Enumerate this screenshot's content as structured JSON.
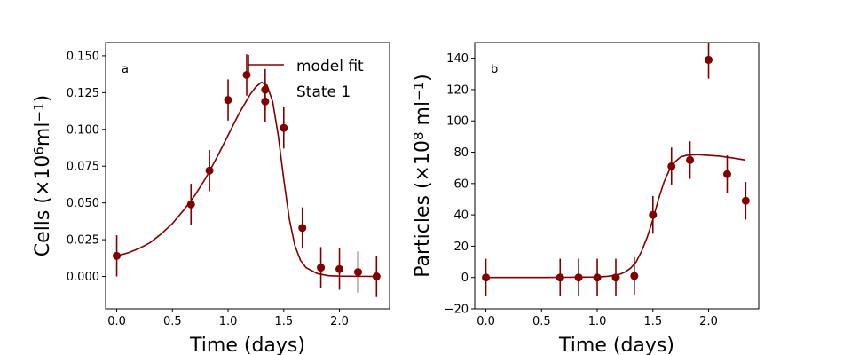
{
  "colors": {
    "data": "#800000",
    "axis": "#000000",
    "background": "#ffffff"
  },
  "chart_data": [
    {
      "type": "scatter",
      "panel_label": "a",
      "xlabel": "Time (days)",
      "ylabel_main": "Cells (×10",
      "ylabel_sup": "6",
      "ylabel_mid": "ml",
      "ylabel_sup2": "−1",
      "ylabel_end": ")",
      "xlim": [
        -0.1,
        2.45
      ],
      "ylim": [
        -0.022,
        0.159
      ],
      "xticks": [
        0.0,
        0.5,
        1.0,
        1.5,
        2.0
      ],
      "xtick_labels": [
        "0.0",
        "0.5",
        "1.0",
        "1.5",
        "2.0"
      ],
      "yticks": [
        0.0,
        0.025,
        0.05,
        0.075,
        0.1,
        0.125,
        0.15
      ],
      "ytick_labels": [
        "0.000",
        "0.025",
        "0.050",
        "0.075",
        "0.100",
        "0.125",
        "0.150"
      ],
      "legend": {
        "position": "top-right",
        "entries": [
          "model fit",
          "State 1"
        ]
      },
      "series": [
        {
          "name": "State 1",
          "kind": "errorbar",
          "x": [
            0.0,
            0.667,
            0.833,
            1.0,
            1.167,
            1.333,
            1.333,
            1.5,
            1.667,
            1.833,
            2.0,
            2.167,
            2.333
          ],
          "y": [
            0.014,
            0.049,
            0.072,
            0.12,
            0.137,
            0.127,
            0.119,
            0.101,
            0.033,
            0.006,
            0.005,
            0.003,
            0.0
          ],
          "yerr": [
            0.014,
            0.014,
            0.014,
            0.014,
            0.014,
            0.014,
            0.014,
            0.014,
            0.014,
            0.014,
            0.014,
            0.014,
            0.014
          ]
        },
        {
          "name": "model fit",
          "kind": "line",
          "x": [
            0.0,
            0.1,
            0.2,
            0.3,
            0.4,
            0.5,
            0.6,
            0.7,
            0.8,
            0.9,
            1.0,
            1.1,
            1.2,
            1.25,
            1.3,
            1.35,
            1.4,
            1.45,
            1.5,
            1.55,
            1.6,
            1.65,
            1.7,
            1.8,
            1.9,
            2.0,
            2.2,
            2.35
          ],
          "y": [
            0.014,
            0.016,
            0.019,
            0.023,
            0.029,
            0.036,
            0.045,
            0.055,
            0.067,
            0.081,
            0.096,
            0.111,
            0.124,
            0.129,
            0.132,
            0.13,
            0.119,
            0.096,
            0.066,
            0.039,
            0.021,
            0.011,
            0.006,
            0.002,
            0.0005,
            0.0002,
            0.0001,
            0.0
          ]
        }
      ]
    },
    {
      "type": "scatter",
      "panel_label": "b",
      "xlabel": "Time (days)",
      "ylabel_main": "Particles (×10",
      "ylabel_sup": "8",
      "ylabel_mid": " ml",
      "ylabel_sup2": "−1",
      "ylabel_end": ")",
      "xlim": [
        -0.1,
        2.45
      ],
      "ylim": [
        -20,
        150
      ],
      "xticks": [
        0.0,
        0.5,
        1.0,
        1.5,
        2.0
      ],
      "xtick_labels": [
        "0.0",
        "0.5",
        "1.0",
        "1.5",
        "2.0"
      ],
      "yticks": [
        -20,
        0,
        20,
        40,
        60,
        80,
        100,
        120,
        140
      ],
      "ytick_labels": [
        "−20",
        "0",
        "20",
        "40",
        "60",
        "80",
        "100",
        "120",
        "140"
      ],
      "series": [
        {
          "kind": "errorbar",
          "x": [
            0.0,
            0.667,
            0.833,
            1.0,
            1.167,
            1.333,
            1.5,
            1.667,
            1.833,
            2.0,
            2.167,
            2.333
          ],
          "y": [
            0,
            0,
            0,
            0,
            0,
            1,
            40,
            71,
            75,
            139,
            66,
            49
          ],
          "yerr": [
            12,
            12,
            12,
            12,
            12,
            12,
            12,
            12,
            12,
            12,
            12,
            12
          ]
        },
        {
          "kind": "line",
          "x": [
            0.0,
            0.5,
            1.0,
            1.1,
            1.2,
            1.25,
            1.3,
            1.35,
            1.4,
            1.45,
            1.5,
            1.55,
            1.6,
            1.65,
            1.7,
            1.75,
            1.8,
            1.9,
            2.0,
            2.1,
            2.2,
            2.33
          ],
          "y": [
            0,
            0,
            0.3,
            0.8,
            2,
            3.5,
            6,
            10,
            17,
            26,
            37,
            50,
            61,
            69,
            74,
            77,
            78,
            78.5,
            78,
            77.5,
            76.5,
            75
          ]
        }
      ]
    }
  ]
}
